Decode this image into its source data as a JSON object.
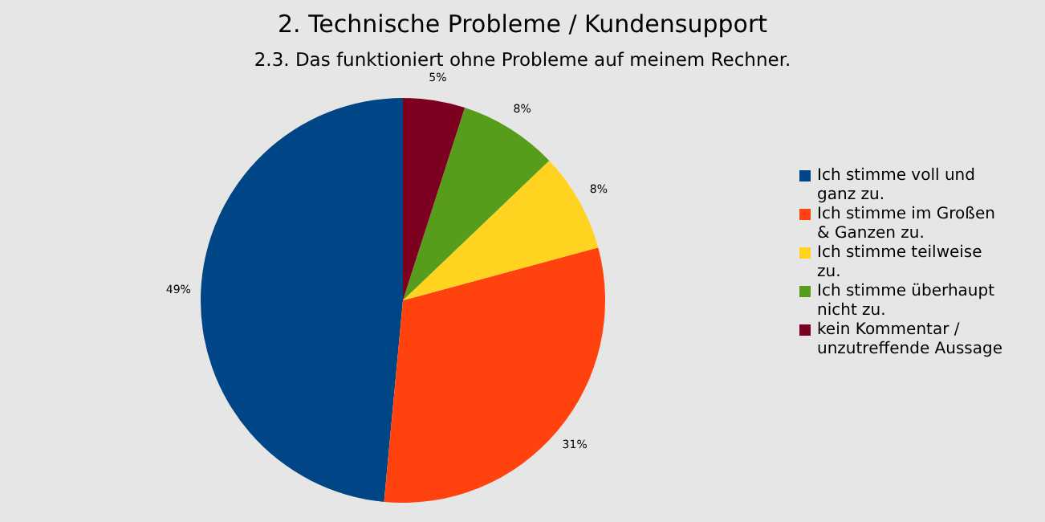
{
  "chart_data": {
    "type": "pie",
    "title": "2. Technische Probleme / Kundensupport",
    "subtitle": "2.3. Das funktioniert ohne Probleme auf meinem Rechner.",
    "categories": [
      "Ich stimme voll und ganz zu.",
      "Ich stimme im Großen & Ganzen zu.",
      "Ich stimme teilweise zu.",
      "Ich stimme überhaupt nicht zu.",
      "kein Kommentar / unzutreffende Aussage"
    ],
    "values": [
      49,
      31,
      8,
      8,
      5
    ],
    "colors": [
      "#004586",
      "#ff420e",
      "#ffd320",
      "#579d1c",
      "#7e0021"
    ],
    "value_labels": [
      "49%",
      "31%",
      "8%",
      "8%",
      "5%"
    ],
    "legend": "right"
  }
}
